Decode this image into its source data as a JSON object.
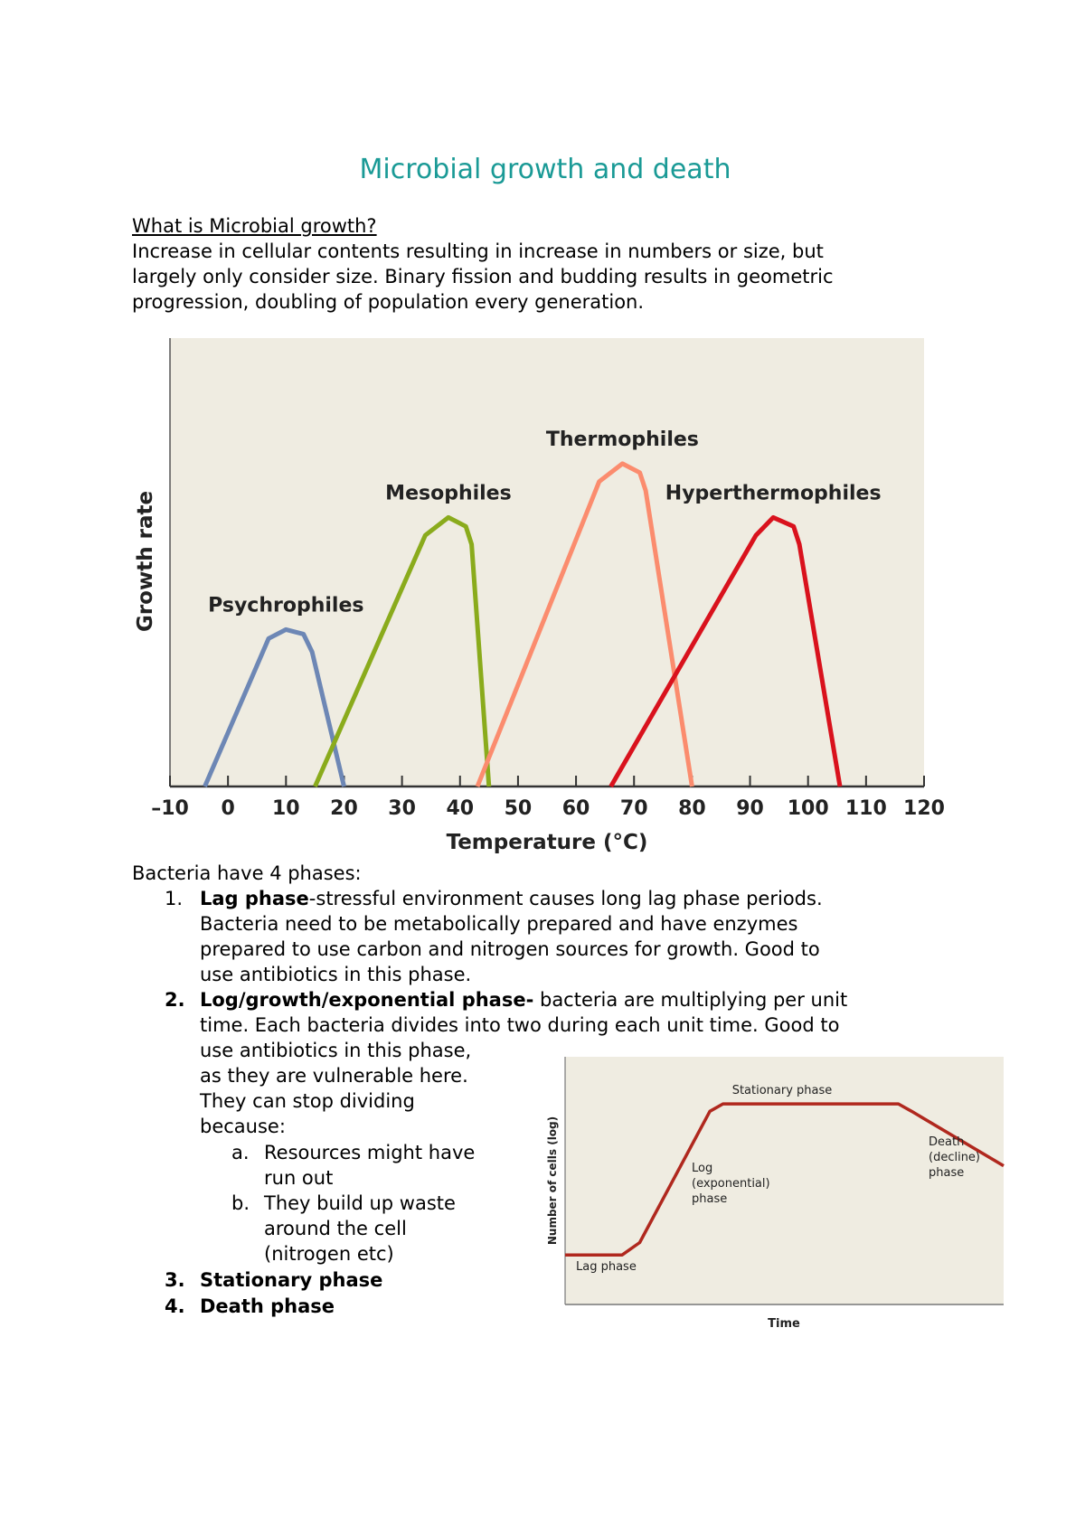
{
  "title": "Microbial growth and death",
  "intro": {
    "heading": "What is Microbial growth?",
    "lines": [
      "Increase in cellular contents resulting in increase in numbers or size, but",
      "largely only consider size. Binary fission and budding results in geometric",
      "progression, doubling of population every generation."
    ]
  },
  "phases": {
    "heading": "Bacteria have 4 phases:",
    "item1": {
      "num": "1.",
      "bold": "Lag phase",
      "lines": [
        "-stressful environment causes long lag phase periods.",
        "Bacteria need to be metabolically prepared and have enzymes",
        "prepared to use carbon and nitrogen sources for growth. Good to",
        "use antibiotics in this phase."
      ]
    },
    "item2": {
      "num": "2.",
      "bold": "Log/growth/exponential phase-",
      "lines": [
        " bacteria are multiplying per unit",
        "time. Each bacteria divides into two during each unit time. Good to",
        "use antibiotics in this phase,",
        "as they are vulnerable here.",
        "They can stop dividing",
        "because:"
      ],
      "sub": [
        {
          "letter": "a.",
          "lines": [
            "Resources might have",
            "run out"
          ]
        },
        {
          "letter": "b.",
          "lines": [
            "They build up waste",
            "around the cell",
            "(nitrogen etc)"
          ]
        }
      ]
    },
    "item3": {
      "num": "3.",
      "bold": "Stationary phase"
    },
    "item4": {
      "num": "4.",
      "bold": "Death phase"
    }
  },
  "chart_data": [
    {
      "type": "line",
      "xlabel": "Temperature (°C)",
      "ylabel": "Growth rate",
      "xlim": [
        -10,
        120
      ],
      "ylim": [
        0,
        1
      ],
      "xticks": [
        "–10",
        "0",
        "10",
        "20",
        "30",
        "40",
        "50",
        "60",
        "70",
        "80",
        "90",
        "100",
        "110",
        "120"
      ],
      "background": "#efece1",
      "grid": false,
      "series": [
        {
          "name": "Psychrophiles",
          "color": "#6d87b5",
          "points": [
            [
              -4,
              0
            ],
            [
              7,
              0.33
            ],
            [
              10,
              0.35
            ],
            [
              13,
              0.34
            ],
            [
              14.5,
              0.3
            ],
            [
              20,
              0
            ]
          ]
        },
        {
          "name": "Mesophiles",
          "color": "#8aab1c",
          "points": [
            [
              15,
              0
            ],
            [
              34,
              0.56
            ],
            [
              38,
              0.6
            ],
            [
              41,
              0.58
            ],
            [
              42,
              0.54
            ],
            [
              45,
              0
            ]
          ]
        },
        {
          "name": "Thermophiles",
          "color": "#fb8c6e",
          "points": [
            [
              43,
              0
            ],
            [
              64,
              0.68
            ],
            [
              68,
              0.72
            ],
            [
              71,
              0.7
            ],
            [
              72,
              0.66
            ],
            [
              80,
              0
            ]
          ]
        },
        {
          "name": "Hyperthermophiles",
          "color": "#d9121d",
          "points": [
            [
              66,
              0
            ],
            [
              91,
              0.56
            ],
            [
              94,
              0.6
            ],
            [
              97.5,
              0.58
            ],
            [
              98.5,
              0.54
            ],
            [
              105.5,
              0
            ]
          ]
        }
      ]
    },
    {
      "type": "line",
      "xlabel": "Time",
      "ylabel": "Number of cells (log)",
      "background": "#efece1",
      "color": "#b0281e",
      "xlim": [
        0,
        1
      ],
      "ylim": [
        0,
        1
      ],
      "points": [
        [
          0,
          0.2
        ],
        [
          0.13,
          0.2
        ],
        [
          0.17,
          0.25
        ],
        [
          0.33,
          0.78
        ],
        [
          0.36,
          0.81
        ],
        [
          0.76,
          0.81
        ],
        [
          0.79,
          0.78
        ],
        [
          1,
          0.56
        ]
      ],
      "annotations": {
        "stationary": "Stationary phase",
        "log": [
          "Log",
          "(exponential)",
          "phase"
        ],
        "death": [
          "Death",
          "(decline)",
          "phase"
        ],
        "lag": "Lag phase"
      }
    }
  ]
}
